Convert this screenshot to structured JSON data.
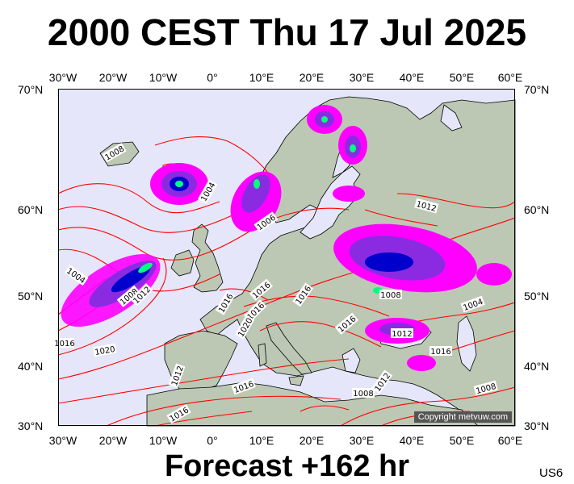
{
  "title": "2000 CEST Thu 17 Jul 2025",
  "footer": "Forecast +162 hr",
  "model_code": "US6",
  "copyright": "Copyright metvuw.com",
  "lon_labels": [
    "30°W",
    "20°W",
    "10°W",
    "0°",
    "10°E",
    "20°E",
    "30°E",
    "40°E",
    "50°E",
    "60°E"
  ],
  "lat_labels": [
    "70°N",
    "60°N",
    "50°N",
    "40°N",
    "30°N"
  ],
  "isobar_labels": [
    "1008",
    "1004",
    "1012",
    "1006",
    "1004",
    "1008",
    "1012",
    "1016",
    "1016",
    "1016",
    "1020",
    "1016",
    "1020",
    "1012",
    "1016",
    "1016",
    "1008",
    "1012",
    "1016",
    "1016",
    "1008",
    "1004",
    "1012",
    "1008",
    "1016"
  ],
  "colors": {
    "ocean": "#e6e6fa",
    "land": "#bcc8b4",
    "isobar": "#ff0000",
    "coast": "#000000",
    "precip_light": "#ff00ff",
    "precip_mid": "#8a2be2",
    "precip_heavy": "#0000cd",
    "precip_core": "#00ff7f"
  }
}
